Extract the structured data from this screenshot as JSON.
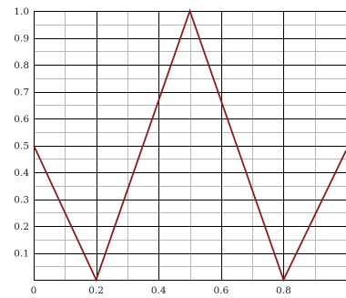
{
  "chart_data": {
    "type": "line",
    "title": "",
    "xlabel": "",
    "ylabel": "",
    "xlim": [
      0,
      1
    ],
    "ylim": [
      0,
      1
    ],
    "grid": true,
    "legend": "none",
    "x_major_ticks": [
      0,
      0.2,
      0.4,
      0.6,
      0.8
    ],
    "x_tick_labels": [
      "0",
      "0.2",
      "0.4",
      "0.6",
      "0.8"
    ],
    "y_major_ticks": [
      0.1,
      0.2,
      0.3,
      0.4,
      0.5,
      0.6,
      0.7,
      0.8,
      0.9,
      1.0
    ],
    "y_tick_labels": [
      "0.1",
      "0.2",
      "0.3",
      "0.4",
      "0.5",
      "0.6",
      "0.7",
      "0.8",
      "0.9",
      "1.0"
    ],
    "x_minor_step": 0.1,
    "y_minor_step": 0.05,
    "series": [
      {
        "x": [
          0,
          0.2,
          0.5,
          0.8,
          1.0
        ],
        "y": [
          0.5,
          0,
          1.0,
          0,
          0.48
        ],
        "color": "#8b1a1a"
      }
    ],
    "colors": {
      "major_grid": "#000000",
      "minor_grid": "#b8b8b8",
      "line": "#8b1a1a"
    }
  }
}
